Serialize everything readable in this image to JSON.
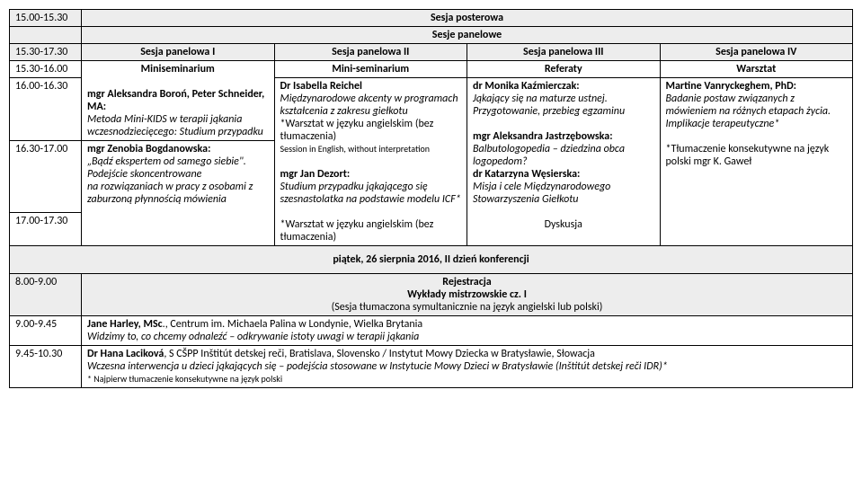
{
  "rows": {
    "poster": {
      "time": "15.00-15.30",
      "title": "Sesja posterowa"
    },
    "panelHeader": {
      "title": "Sesje panelowe"
    },
    "panelCols": {
      "time": "15.30-17.30",
      "c1": "Sesja panelowa I",
      "c2": "Sesja panelowa II",
      "c3": "Sesja panelowa III",
      "c4": "Sesja panelowa IV"
    },
    "subHeader": {
      "time": "15.30-16.00",
      "c1": "Miniseminarium",
      "c2": "Mini-seminarium",
      "c3": "Referaty",
      "c4": "Warsztat"
    },
    "r1": {
      "time": "16.00-16.30",
      "c2": {
        "author": "Dr Isabella Reichel",
        "text": "Międzynarodowe akcenty w programach kształcenia z zakresu giełkotu",
        "note1": "*Warsztat w języku angielskim (bez tłumaczenia)",
        "note2": "Session in English, without interpretation"
      },
      "c3a": {
        "author": "dr Monika Kaźmierczak:",
        "text": "Jąkający się na maturze ustnej. Przygotowanie, przebieg egzaminu"
      },
      "c3b": {
        "author": "mgr Aleksandra Jastrzębowska:",
        "text": "Balbutologopedia – dziedzina obca logopedom?"
      },
      "c4": {
        "author": "Martine Vanryckeghem, PhD:",
        "text": "Badanie postaw związanych z mówieniem na różnych etapach życia. Implikacje terapeutyczne*",
        "note": "*Tłumaczenie konsekutywne na język polski mgr K. Gaweł"
      }
    },
    "r1c1": {
      "author": "mgr Aleksandra Boroń, Peter Schneider, MA:",
      "text": "Metoda Mini-KIDS w terapii jąkania wczesnodziecięcego: Studium przypadku"
    },
    "r2": {
      "time1": "16.30-17.00",
      "time2": "17.00-17.30",
      "c1a": {
        "author": "mgr Zenobia Bogdanowska:",
        "text1": "„Bądź ekspertem od samego siebie\". Podejście skoncentrowane",
        "text2": "na rozwiązaniach w pracy z osobami z zaburzoną płynnością mówienia"
      },
      "c2": {
        "author": "mgr Jan Dezort:",
        "text": "Studium przypadku jąkającego się szesnastolatka na podstawie modelu ICF*",
        "note": "*Warsztat w języku angielskim (bez tłumaczenia)"
      },
      "c3a": {
        "author": "dr Katarzyna Węsierska:",
        "text": "Misja i cele Międzynarodowego Stowarzyszenia Giełkotu"
      },
      "c3b": "Dyskusja"
    },
    "day2": {
      "title": "piątek, 26 sierpnia 2016, II dzień konferencji"
    },
    "reg": {
      "time": "8.00-9.00",
      "title": "Rejestracja",
      "sub1": "Wykłady mistrzowskie cz. I",
      "sub2": "(Sesja tłumaczona symultanicznie na język angielski lub polski)"
    },
    "lec1": {
      "time": "9.00-9.45",
      "authorBold": "Jane Harley, MSc",
      "authorRest": "., Centrum im. Michaela Palina w Londynie, Wielka Brytania",
      "text": "Widzimy to, co chcemy odnaleźć – odkrywanie istoty uwagi w terapii jąkania"
    },
    "lec2": {
      "time": "9.45-10.30",
      "authorBold": "Dr Hana Laciková",
      "authorRest": ", S CŠPP Inštitút detskej reči, Bratislava, Slovensko / Instytut Mowy Dziecka w Bratysławie, Słowacja",
      "text": "Wczesna interwencja u dzieci jąkających się – podejścia stosowane w Instytucie Mowy Dzieci w Bratysławie (Inštitút detskej reči IDR)*",
      "note": "* Najpierw tłumaczenie konsekutywne na język polski"
    }
  }
}
